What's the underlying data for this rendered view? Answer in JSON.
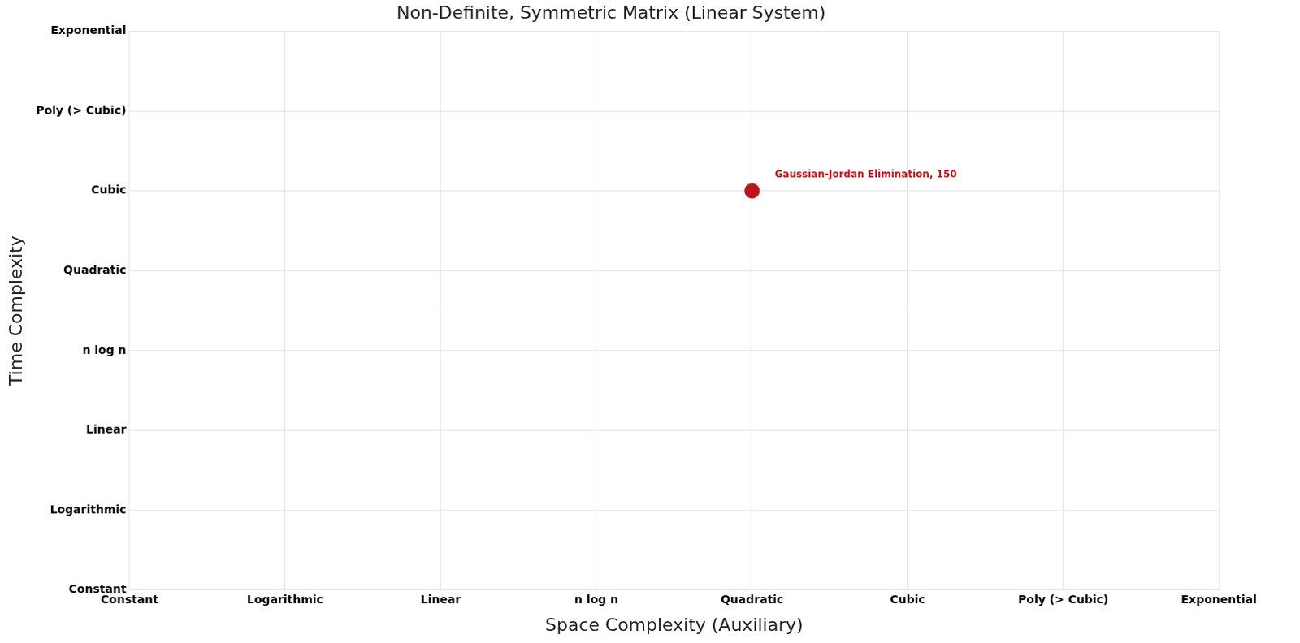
{
  "chart_data": {
    "type": "scatter",
    "title": "Non-Definite, Symmetric Matrix (Linear System)",
    "x_label": "Space Complexity (Auxiliary)",
    "y_label": "Time Complexity",
    "xlim": [
      0,
      7
    ],
    "xticks": [
      {
        "value": 0,
        "label": "Constant"
      },
      {
        "value": 1,
        "label": "Logarithmic"
      },
      {
        "value": 2,
        "label": "Linear"
      },
      {
        "value": 3,
        "label": "n log n"
      },
      {
        "value": 4,
        "label": "Quadratic"
      },
      {
        "value": 5,
        "label": "Cubic"
      },
      {
        "value": 6,
        "label": "Poly (> Cubic)"
      },
      {
        "value": 7,
        "label": "Exponential"
      }
    ],
    "ylim": [
      0,
      7
    ],
    "yticks": [
      {
        "value": 0,
        "label": "Constant"
      },
      {
        "value": 1,
        "label": "Logarithmic"
      },
      {
        "value": 2,
        "label": "Linear"
      },
      {
        "value": 3,
        "label": "n log n"
      },
      {
        "value": 4,
        "label": "Quadratic"
      },
      {
        "value": 5,
        "label": "Cubic"
      },
      {
        "value": 6,
        "label": "Poly (> Cubic)"
      },
      {
        "value": 7,
        "label": "Exponential"
      }
    ],
    "points": [
      {
        "x": 4,
        "y": 5,
        "label": "Gaussian-Jordan Elimination, 150"
      }
    ],
    "color": "#c0141c",
    "grid": true
  }
}
